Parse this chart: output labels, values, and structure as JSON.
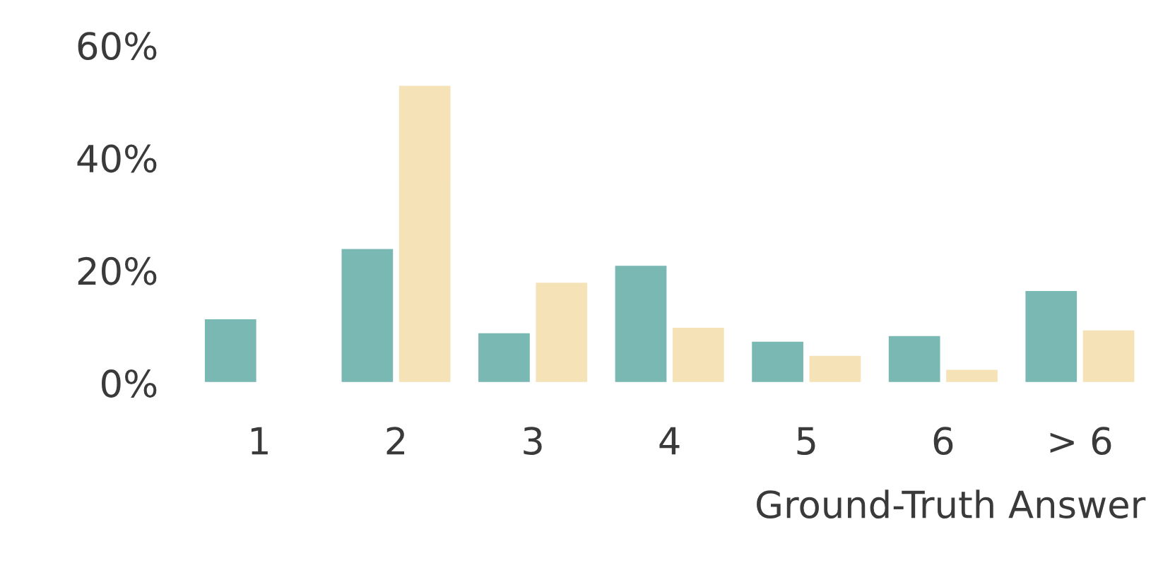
{
  "chart_data": {
    "type": "bar",
    "xlabel": "Ground-Truth Answer",
    "categories": [
      "1",
      "2",
      "3",
      "4",
      "5",
      "6",
      "> 6"
    ],
    "series": [
      {
        "color": "#7ab8b3",
        "values": [
          11.5,
          24,
          9,
          21,
          7.5,
          8.5,
          16.5
        ]
      },
      {
        "color": "#f5e3b7",
        "values": [
          null,
          53,
          18,
          10,
          5,
          2.5,
          9.5
        ]
      }
    ],
    "ylim": [
      0,
      60
    ],
    "yticks": [
      {
        "value": 0,
        "label": "0%"
      },
      {
        "value": 20,
        "label": "20%"
      },
      {
        "value": 40,
        "label": "40%"
      },
      {
        "value": 60,
        "label": "60%"
      }
    ],
    "grid": false,
    "legend": false
  }
}
